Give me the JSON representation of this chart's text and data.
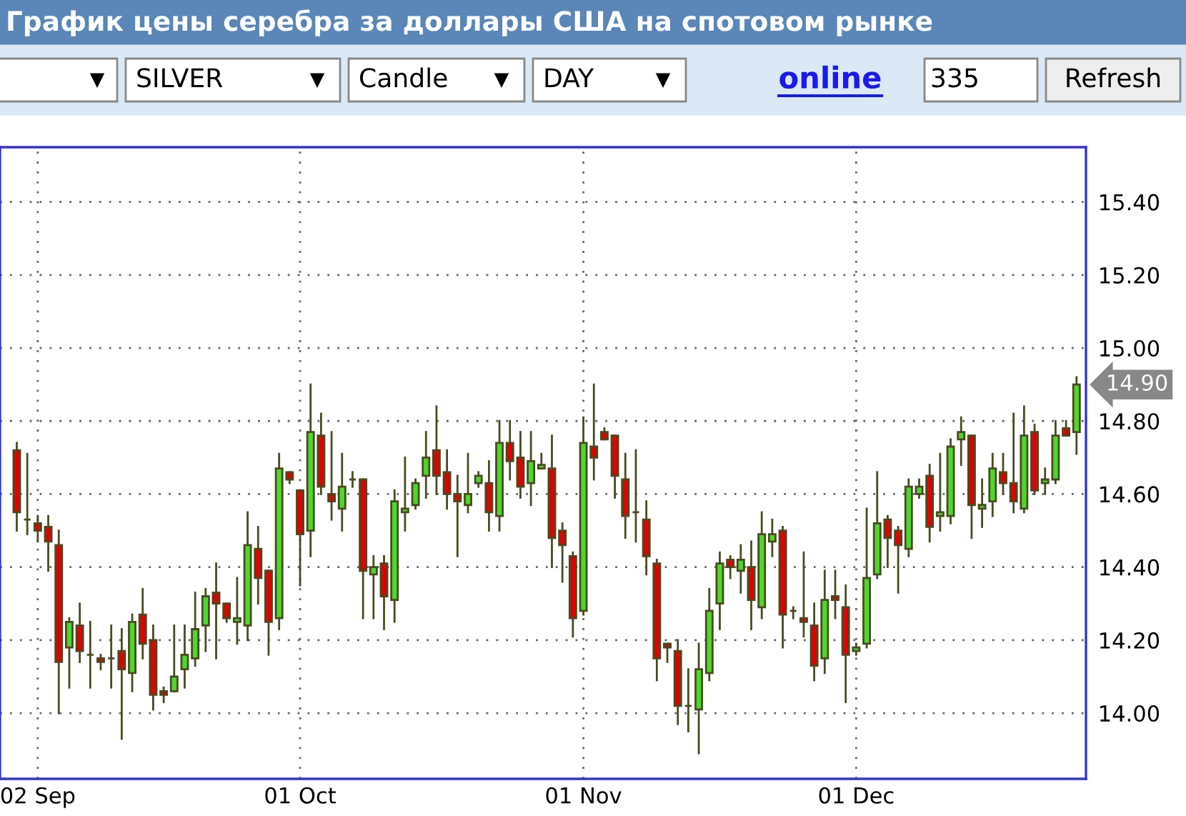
{
  "chart_data": {
    "type": "candlestick",
    "title": "График цены серебра за доллары США на спотовом рынке",
    "annotations": [
      "SILVER",
      "Candle",
      "DAY",
      "online",
      "335",
      "Refresh",
      "14.90"
    ],
    "categories": [
      null,
      null,
      "02 Sep",
      null,
      null,
      null,
      null,
      null,
      null,
      null,
      null,
      null,
      null,
      null,
      null,
      null,
      null,
      null,
      null,
      null,
      null,
      null,
      null,
      null,
      null,
      null,
      null,
      "01 Oct",
      null,
      null,
      null,
      null,
      null,
      null,
      null,
      null,
      null,
      null,
      null,
      null,
      null,
      null,
      null,
      null,
      null,
      null,
      null,
      null,
      null,
      null,
      null,
      null,
      null,
      null,
      "01 Nov",
      null,
      null,
      null,
      null,
      null,
      null,
      null,
      null,
      null,
      null,
      null,
      null,
      null,
      null,
      null,
      null,
      null,
      null,
      null,
      null,
      null,
      null,
      null,
      null,
      null,
      "01 Dec",
      null,
      null,
      null,
      null,
      null,
      null,
      null,
      null,
      null,
      null,
      null,
      null,
      null,
      null,
      null,
      null,
      null,
      null,
      null,
      null,
      null
    ],
    "ohlc": [
      [
        14.72,
        14.74,
        14.5,
        14.55
      ],
      [
        14.53,
        14.71,
        14.49,
        14.53
      ],
      [
        14.52,
        14.54,
        14.47,
        14.5
      ],
      [
        14.51,
        14.54,
        14.39,
        14.47
      ],
      [
        14.46,
        14.5,
        14.0,
        14.14
      ],
      [
        14.18,
        14.26,
        14.07,
        14.25
      ],
      [
        14.24,
        14.3,
        14.14,
        14.17
      ],
      [
        14.16,
        14.25,
        14.07,
        14.16
      ],
      [
        14.15,
        14.16,
        14.12,
        14.14
      ],
      [
        14.15,
        14.24,
        14.07,
        14.15
      ],
      [
        14.17,
        14.23,
        13.93,
        14.12
      ],
      [
        14.11,
        14.27,
        14.06,
        14.25
      ],
      [
        14.27,
        14.34,
        14.15,
        14.19
      ],
      [
        14.2,
        14.24,
        14.01,
        14.05
      ],
      [
        14.06,
        14.07,
        14.03,
        14.05
      ],
      [
        14.06,
        14.24,
        14.06,
        14.1
      ],
      [
        14.12,
        14.24,
        14.07,
        14.16
      ],
      [
        14.15,
        14.33,
        14.13,
        14.23
      ],
      [
        14.24,
        14.34,
        14.17,
        14.32
      ],
      [
        14.33,
        14.41,
        14.15,
        14.3
      ],
      [
        14.3,
        14.3,
        14.25,
        14.26
      ],
      [
        14.25,
        14.37,
        14.19,
        14.26
      ],
      [
        14.24,
        14.55,
        14.2,
        14.46
      ],
      [
        14.45,
        14.51,
        14.3,
        14.37
      ],
      [
        14.39,
        14.39,
        14.16,
        14.25
      ],
      [
        14.26,
        14.71,
        14.23,
        14.67
      ],
      [
        14.66,
        14.66,
        14.63,
        14.64
      ],
      [
        14.61,
        14.61,
        14.35,
        14.49
      ],
      [
        14.5,
        14.9,
        14.43,
        14.77
      ],
      [
        14.76,
        14.82,
        14.6,
        14.62
      ],
      [
        14.6,
        14.77,
        14.53,
        14.58
      ],
      [
        14.56,
        14.71,
        14.5,
        14.62
      ],
      [
        14.64,
        14.66,
        14.62,
        14.64
      ],
      [
        14.64,
        14.64,
        14.26,
        14.39
      ],
      [
        14.38,
        14.43,
        14.26,
        14.4
      ],
      [
        14.41,
        14.43,
        14.23,
        14.32
      ],
      [
        14.31,
        14.61,
        14.25,
        14.58
      ],
      [
        14.55,
        14.7,
        14.5,
        14.56
      ],
      [
        14.57,
        14.64,
        14.56,
        14.63
      ],
      [
        14.65,
        14.77,
        14.59,
        14.7
      ],
      [
        14.72,
        14.84,
        14.6,
        14.65
      ],
      [
        14.66,
        14.72,
        14.56,
        14.6
      ],
      [
        14.6,
        14.65,
        14.43,
        14.58
      ],
      [
        14.57,
        14.71,
        14.55,
        14.6
      ],
      [
        14.63,
        14.66,
        14.62,
        14.65
      ],
      [
        14.63,
        14.69,
        14.5,
        14.55
      ],
      [
        14.54,
        14.8,
        14.5,
        14.74
      ],
      [
        14.74,
        14.8,
        14.64,
        14.69
      ],
      [
        14.7,
        14.77,
        14.59,
        14.62
      ],
      [
        14.63,
        14.77,
        14.57,
        14.69
      ],
      [
        14.67,
        14.71,
        14.67,
        14.68
      ],
      [
        14.67,
        14.76,
        14.4,
        14.48
      ],
      [
        14.5,
        14.52,
        14.36,
        14.46
      ],
      [
        14.43,
        14.44,
        14.21,
        14.26
      ],
      [
        14.28,
        14.81,
        14.27,
        14.74
      ],
      [
        14.73,
        14.9,
        14.64,
        14.7
      ],
      [
        14.77,
        14.78,
        14.75,
        14.75
      ],
      [
        14.76,
        14.76,
        14.59,
        14.65
      ],
      [
        14.64,
        14.71,
        14.48,
        14.54
      ],
      [
        14.55,
        14.72,
        14.47,
        14.55
      ],
      [
        14.53,
        14.58,
        14.38,
        14.43
      ],
      [
        14.41,
        14.42,
        14.09,
        14.15
      ],
      [
        14.19,
        14.19,
        14.14,
        14.18
      ],
      [
        14.17,
        14.2,
        13.97,
        14.02
      ],
      [
        14.02,
        14.12,
        13.95,
        14.02
      ],
      [
        14.01,
        14.19,
        13.89,
        14.12
      ],
      [
        14.11,
        14.34,
        14.09,
        14.28
      ],
      [
        14.3,
        14.44,
        14.23,
        14.41
      ],
      [
        14.42,
        14.43,
        14.37,
        14.4
      ],
      [
        14.39,
        14.46,
        14.33,
        14.42
      ],
      [
        14.4,
        14.47,
        14.23,
        14.31
      ],
      [
        14.29,
        14.55,
        14.26,
        14.49
      ],
      [
        14.47,
        14.53,
        14.43,
        14.49
      ],
      [
        14.5,
        14.51,
        14.18,
        14.27
      ],
      [
        14.28,
        14.29,
        14.26,
        14.28
      ],
      [
        14.26,
        14.44,
        14.21,
        14.25
      ],
      [
        14.24,
        14.3,
        14.09,
        14.13
      ],
      [
        14.15,
        14.39,
        14.11,
        14.31
      ],
      [
        14.32,
        14.39,
        14.26,
        14.31
      ],
      [
        14.29,
        14.35,
        14.03,
        14.16
      ],
      [
        14.17,
        14.19,
        14.16,
        14.18
      ],
      [
        14.19,
        14.56,
        14.18,
        14.37
      ],
      [
        14.38,
        14.66,
        14.37,
        14.52
      ],
      [
        14.53,
        14.54,
        14.4,
        14.48
      ],
      [
        14.5,
        14.51,
        14.33,
        14.46
      ],
      [
        14.45,
        14.64,
        14.43,
        14.62
      ],
      [
        14.6,
        14.64,
        14.59,
        14.62
      ],
      [
        14.65,
        14.68,
        14.47,
        14.51
      ],
      [
        14.54,
        14.71,
        14.5,
        14.55
      ],
      [
        14.54,
        14.75,
        14.52,
        14.73
      ],
      [
        14.75,
        14.81,
        14.68,
        14.77
      ],
      [
        14.76,
        14.76,
        14.48,
        14.57
      ],
      [
        14.56,
        14.64,
        14.51,
        14.57
      ],
      [
        14.58,
        14.71,
        14.54,
        14.67
      ],
      [
        14.66,
        14.71,
        14.6,
        14.63
      ],
      [
        14.63,
        14.82,
        14.55,
        14.58
      ],
      [
        14.56,
        14.84,
        14.55,
        14.76
      ],
      [
        14.77,
        14.79,
        14.6,
        14.61
      ],
      [
        14.63,
        14.67,
        14.6,
        14.64
      ],
      [
        14.64,
        14.8,
        14.63,
        14.76
      ],
      [
        14.78,
        14.8,
        14.76,
        14.76
      ],
      [
        14.77,
        14.92,
        14.71,
        14.9
      ]
    ],
    "colors": [
      "#e00000",
      "#4a4a20",
      "#e00000",
      "#e00000",
      "#e00000",
      "#4cd92a",
      "#e00000",
      "#4a4a20",
      "#e00000",
      "#4a4a20",
      "#e00000",
      "#4cd92a",
      "#e00000",
      "#e00000",
      "#e00000",
      "#4cd92a",
      "#4cd92a",
      "#4cd92a",
      "#4cd92a",
      "#e00000",
      "#e00000",
      "#4cd92a",
      "#4cd92a",
      "#e00000",
      "#e00000",
      "#4cd92a",
      "#e00000",
      "#e00000",
      "#4cd92a",
      "#e00000",
      "#e00000",
      "#4cd92a",
      "#4a4a20",
      "#e00000",
      "#4cd92a",
      "#e00000",
      "#4cd92a",
      "#4cd92a",
      "#4cd92a",
      "#4cd92a",
      "#e00000",
      "#e00000",
      "#e00000",
      "#4cd92a",
      "#4cd92a",
      "#e00000",
      "#4cd92a",
      "#e00000",
      "#e00000",
      "#4cd92a",
      "#4cd92a",
      "#e00000",
      "#e00000",
      "#e00000",
      "#4cd92a",
      "#e00000",
      "#e00000",
      "#e00000",
      "#e00000",
      "#4a4a20",
      "#e00000",
      "#e00000",
      "#e00000",
      "#e00000",
      "#4a4a20",
      "#4cd92a",
      "#4cd92a",
      "#4cd92a",
      "#e00000",
      "#4cd92a",
      "#e00000",
      "#4cd92a",
      "#4cd92a",
      "#e00000",
      "#4a4a20",
      "#e00000",
      "#e00000",
      "#4cd92a",
      "#e00000",
      "#e00000",
      "#4cd92a",
      "#4cd92a",
      "#4cd92a",
      "#e00000",
      "#e00000",
      "#4cd92a",
      "#4cd92a",
      "#e00000",
      "#4cd92a",
      "#4cd92a",
      "#4cd92a",
      "#e00000",
      "#4cd92a",
      "#4cd92a",
      "#e00000",
      "#e00000",
      "#4cd92a",
      "#e00000",
      "#4cd92a",
      "#4cd92a",
      "#e00000",
      "#4cd92a"
    ],
    "ylim": [
      13.82,
      15.55
    ],
    "yticks": [
      {
        "value": 14.0,
        "label": "14.00"
      },
      {
        "value": 14.2,
        "label": "14.20"
      },
      {
        "value": 14.4,
        "label": "14.40"
      },
      {
        "value": 14.6,
        "label": "14.60"
      },
      {
        "value": 14.8,
        "label": "14.80"
      },
      {
        "value": 15.0,
        "label": "15.00"
      },
      {
        "value": 15.2,
        "label": "15.20"
      },
      {
        "value": 15.4,
        "label": "15.40"
      }
    ],
    "grid": true
  }
}
